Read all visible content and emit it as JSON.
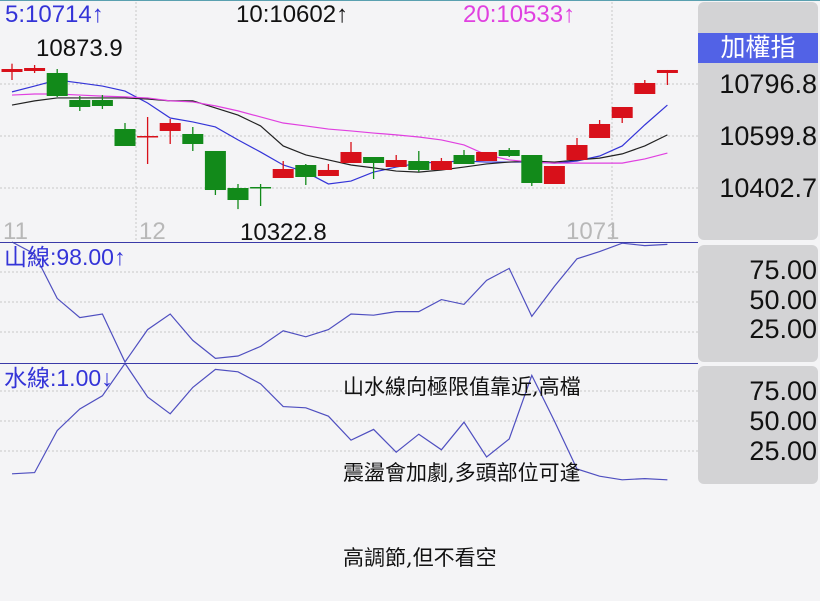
{
  "header": {
    "ma5_label": "5:10714↑",
    "ma10_label": "10:10602↑",
    "ma20_label": "20:10533↑",
    "index_name": "加權指"
  },
  "colors": {
    "ma5": "#3434d8",
    "ma10": "#222222",
    "ma20": "#e040e0",
    "up_candle": "#d8101a",
    "down_candle": "#128a1a",
    "index_badge": "#5262e6",
    "indicator_line": "#4f4fc0",
    "separator": "#3a3aa8"
  },
  "price_panel": {
    "high_label": "10873.9",
    "low_label": "10322.8",
    "axis_labels": [
      "10796.8",
      "10599.8",
      "10402.7"
    ],
    "x_labels": [
      "11",
      "12",
      "1071"
    ]
  },
  "mountain_panel": {
    "label": "山線:98.00↑",
    "axis_labels": [
      "75.00",
      "50.00",
      "25.00"
    ]
  },
  "water_panel": {
    "label": "水線:1.00↓",
    "axis_labels": [
      "75.00",
      "50.00",
      "25.00"
    ]
  },
  "annotation": {
    "lines": [
      "山水線向極限值靠近,高檔",
      "震盪會加劇,多頭部位可逢",
      "高調節,但不看空"
    ]
  },
  "chart_data": [
    {
      "type": "candlestick",
      "ylim": [
        10280,
        10960
      ],
      "y_ticks": [
        10796.8,
        10599.8,
        10402.7
      ],
      "grid": true,
      "candles": [
        {
          "o": 10842.4,
          "h": 10873.9,
          "l": 10812.0,
          "c": 10853.7
        },
        {
          "o": 10846.2,
          "h": 10868.9,
          "l": 10838.6,
          "c": 10857.5
        },
        {
          "o": 10838.6,
          "h": 10853.7,
          "l": 10747.6,
          "c": 10751.4
        },
        {
          "o": 10736.2,
          "h": 10751.4,
          "l": 10694.6,
          "c": 10709.7
        },
        {
          "o": 10736.2,
          "h": 10755.2,
          "l": 10702.1,
          "c": 10713.5
        },
        {
          "o": 10626.3,
          "h": 10649.1,
          "l": 10561.9,
          "c": 10561.9
        },
        {
          "o": 10596.0,
          "h": 10671.8,
          "l": 10493.7,
          "c": 10599.8
        },
        {
          "o": 10618.8,
          "h": 10664.2,
          "l": 10569.5,
          "c": 10649.1
        },
        {
          "o": 10607.4,
          "h": 10633.9,
          "l": 10543.0,
          "c": 10569.5
        },
        {
          "o": 10543.0,
          "h": 10543.0,
          "l": 10376.2,
          "c": 10395.1
        },
        {
          "o": 10402.7,
          "h": 10417.9,
          "l": 10322.8,
          "c": 10357.2
        },
        {
          "o": 10406.5,
          "h": 10417.9,
          "l": 10334.5,
          "c": 10402.7
        },
        {
          "o": 10440.6,
          "h": 10505.1,
          "l": 10440.6,
          "c": 10474.7
        },
        {
          "o": 10489.9,
          "h": 10493.7,
          "l": 10414.1,
          "c": 10444.4
        },
        {
          "o": 10448.2,
          "h": 10493.7,
          "l": 10448.2,
          "c": 10471.0
        },
        {
          "o": 10497.5,
          "h": 10577.1,
          "l": 10497.5,
          "c": 10539.2
        },
        {
          "o": 10520.2,
          "h": 10520.2,
          "l": 10436.8,
          "c": 10497.5
        },
        {
          "o": 10482.3,
          "h": 10527.8,
          "l": 10482.3,
          "c": 10508.8
        },
        {
          "o": 10505.0,
          "h": 10543.0,
          "l": 10463.4,
          "c": 10471.0
        },
        {
          "o": 10471.0,
          "h": 10516.4,
          "l": 10471.0,
          "c": 10505.0
        },
        {
          "o": 10527.8,
          "h": 10546.7,
          "l": 10493.7,
          "c": 10493.7
        },
        {
          "o": 10505.0,
          "h": 10539.2,
          "l": 10505.0,
          "c": 10539.2
        },
        {
          "o": 10546.7,
          "h": 10554.3,
          "l": 10520.2,
          "c": 10524.0
        },
        {
          "o": 10527.8,
          "h": 10527.8,
          "l": 10410.3,
          "c": 10421.7
        },
        {
          "o": 10417.9,
          "h": 10486.1,
          "l": 10417.9,
          "c": 10486.1
        },
        {
          "o": 10508.8,
          "h": 10592.2,
          "l": 10508.8,
          "c": 10565.7
        },
        {
          "o": 10592.2,
          "h": 10660.4,
          "l": 10592.2,
          "c": 10645.3
        },
        {
          "o": 10668.0,
          "h": 10709.7,
          "l": 10649.1,
          "c": 10709.7
        },
        {
          "o": 10759.0,
          "h": 10812.0,
          "l": 10759.0,
          "c": 10800.7
        },
        {
          "o": 10838.6,
          "h": 10850.0,
          "l": 10793.1,
          "c": 10850.0
        }
      ],
      "series": [
        {
          "name": "5",
          "values": [
            10767,
            10789,
            10812,
            10801,
            10789,
            10770,
            10725,
            10668,
            10653,
            10634,
            10585,
            10539,
            10490,
            10463,
            10418,
            10429,
            10463,
            10482,
            10497,
            10501,
            10505,
            10501,
            10501,
            10501,
            10497,
            10505,
            10524,
            10562,
            10642,
            10717
          ]
        },
        {
          "name": "10",
          "values": [
            10717,
            10733,
            10744,
            10744,
            10744,
            10744,
            10740,
            10733,
            10733,
            10706,
            10679,
            10638,
            10562,
            10528,
            10509,
            10490,
            10479,
            10467,
            10463,
            10471,
            10482,
            10494,
            10501,
            10505,
            10501,
            10509,
            10516,
            10532,
            10562,
            10604
          ]
        },
        {
          "name": "20",
          "values": [
            10755,
            10759,
            10759,
            10755,
            10751,
            10748,
            10744,
            10733,
            10729,
            10714,
            10695,
            10672,
            10649,
            10638,
            10626,
            10619,
            10611,
            10604,
            10596,
            10585,
            10566,
            10528,
            10509,
            10501,
            10497,
            10497,
            10497,
            10497,
            10513,
            10535
          ]
        }
      ]
    },
    {
      "type": "line",
      "name": "山線",
      "ylim": [
        0,
        100
      ],
      "y_ticks": [
        75,
        50,
        25
      ],
      "values": [
        100,
        90,
        53,
        37,
        40,
        0,
        27,
        40,
        18,
        3,
        5,
        13,
        26,
        21,
        27,
        40,
        39,
        42,
        42,
        52,
        48,
        68,
        78,
        38,
        63,
        86,
        92,
        99,
        97,
        98
      ]
    },
    {
      "type": "line",
      "name": "水線",
      "ylim": [
        0,
        100
      ],
      "y_ticks": [
        75,
        50,
        25
      ],
      "values": [
        6,
        7,
        42,
        60,
        71,
        98,
        70,
        56,
        78,
        93,
        91,
        81,
        62,
        61,
        54,
        34,
        43,
        24,
        39,
        26,
        49,
        20,
        35,
        88,
        50,
        10,
        4,
        1,
        2,
        1
      ]
    }
  ]
}
